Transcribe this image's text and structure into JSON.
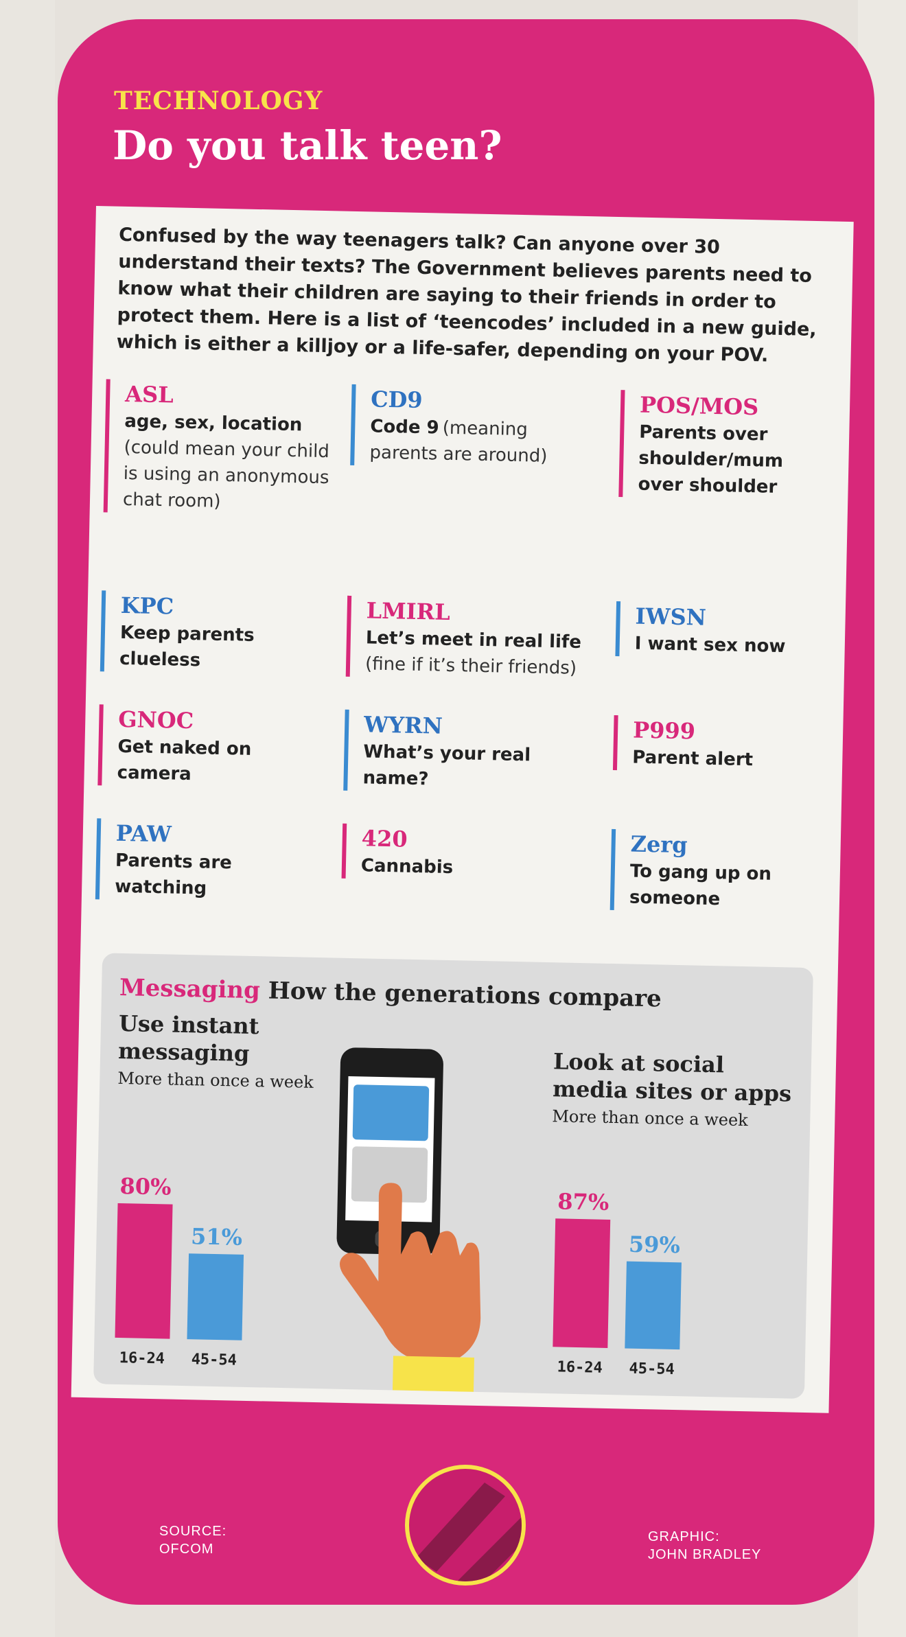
{
  "kicker": "TECHNOLOGY",
  "headline": "Do you talk teen?",
  "intro": "Confused by the way teenagers talk? Can anyone over 30 understand their texts? The Government believes parents need to know what their children are saying to their friends in order to protect them. Here is a list of ‘teencodes’ included in a new guide, which is either a killjoy or a life-safer, depending on your POV.",
  "codes": [
    {
      "code": "ASL",
      "meaning": "age, sex, location",
      "note": "(could mean your child is using an anonymous chat room)"
    },
    {
      "code": "CD9",
      "meaning": "Code 9",
      "note": "(meaning parents are around)"
    },
    {
      "code": "POS/MOS",
      "meaning": "Parents over shoulder/mum over shoulder",
      "note": ""
    },
    {
      "code": "KPC",
      "meaning": "Keep parents clueless",
      "note": ""
    },
    {
      "code": "LMIRL",
      "meaning": "Let’s meet in real life",
      "note": "(fine if it’s their friends)"
    },
    {
      "code": "IWSN",
      "meaning": "I want sex now",
      "note": ""
    },
    {
      "code": "GNOC",
      "meaning": "Get naked on camera",
      "note": ""
    },
    {
      "code": "WYRN",
      "meaning": "What’s your real name?",
      "note": ""
    },
    {
      "code": "P999",
      "meaning": "Parent alert",
      "note": ""
    },
    {
      "code": "PAW",
      "meaning": "Parents are watching",
      "note": ""
    },
    {
      "code": "420",
      "meaning": "Cannabis",
      "note": ""
    },
    {
      "code": "Zerg",
      "meaning": "To gang up on someone",
      "note": ""
    }
  ],
  "messaging": {
    "label": "Messaging",
    "title": "How the generations compare"
  },
  "chart_data": [
    {
      "type": "bar",
      "title": "Use instant messaging",
      "subtitle": "More than once a week",
      "categories": [
        "16-24",
        "45-54"
      ],
      "values": [
        80,
        51
      ],
      "value_labels": [
        "80%",
        "51%"
      ],
      "ylim": [
        0,
        100
      ],
      "colors": [
        "#d8287a",
        "#4a9ad8"
      ]
    },
    {
      "type": "bar",
      "title": "Look at social media sites or apps",
      "subtitle": "More than once a week",
      "categories": [
        "16-24",
        "45-54"
      ],
      "values": [
        87,
        59
      ],
      "value_labels": [
        "87%",
        "59%"
      ],
      "ylim": [
        0,
        100
      ],
      "colors": [
        "#d8287a",
        "#4a9ad8"
      ]
    }
  ],
  "footer": {
    "source": "SOURCE:\nOFCOM",
    "graphic": "GRAPHIC:\nJOHN BRADLEY"
  },
  "colors": {
    "pink": "#d8287a",
    "blue": "#4a9ad8",
    "yellow": "#f7e34a"
  }
}
